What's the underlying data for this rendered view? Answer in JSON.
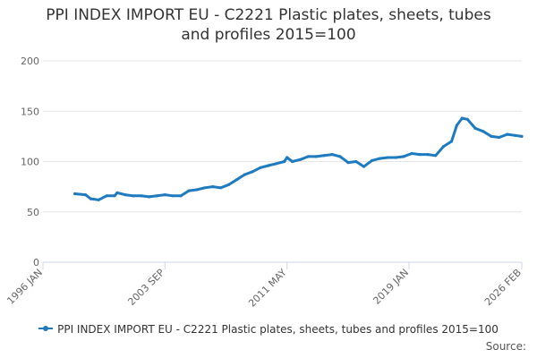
{
  "title_line1": "PPI INDEX IMPORT EU - C2221 Plastic plates, sheets, tubes",
  "title_line2": "and profiles 2015=100",
  "source_label": "Source:",
  "colors": {
    "series": "#1f7bbf",
    "grid": "#e6e6e6",
    "axis": "#ccd6eb",
    "text": "#666666"
  },
  "chart_data": {
    "type": "line",
    "title": "PPI INDEX IMPORT EU - C2221 Plastic plates, sheets, tubes and profiles 2015=100",
    "xlabel": "",
    "ylabel": "",
    "ylim": [
      0,
      200
    ],
    "yticks": [
      0,
      50,
      100,
      150,
      200
    ],
    "xlim": [
      "1996-01",
      "2026-02"
    ],
    "xtick_labels": [
      "1996 JAN",
      "2003 SEP",
      "2011 MAY",
      "2019 JAN",
      "2026 FEB"
    ],
    "xtick_dates": [
      "1996-01",
      "2003-09",
      "2011-05",
      "2019-01",
      "2026-02"
    ],
    "grid": true,
    "legend_position": "bottom",
    "series": [
      {
        "name": "PPI INDEX IMPORT EU - C2221 Plastic plates, sheets, tubes and profiles 2015=100",
        "x": [
          "1998-01",
          "1998-09",
          "1999-01",
          "1999-07",
          "2000-01",
          "2000-07",
          "2000-09",
          "2001-03",
          "2001-09",
          "2002-03",
          "2002-09",
          "2003-03",
          "2003-09",
          "2004-03",
          "2004-09",
          "2005-03",
          "2005-09",
          "2006-03",
          "2006-09",
          "2007-03",
          "2007-09",
          "2008-03",
          "2008-09",
          "2009-03",
          "2009-09",
          "2010-03",
          "2010-09",
          "2011-03",
          "2011-05",
          "2011-09",
          "2012-03",
          "2012-09",
          "2013-03",
          "2013-09",
          "2014-03",
          "2014-09",
          "2015-03",
          "2015-09",
          "2016-03",
          "2016-09",
          "2017-03",
          "2017-09",
          "2018-03",
          "2018-09",
          "2019-03",
          "2019-09",
          "2020-03",
          "2020-09",
          "2021-03",
          "2021-09",
          "2022-01",
          "2022-05",
          "2022-09",
          "2023-03",
          "2023-09",
          "2024-03",
          "2024-09",
          "2025-03",
          "2025-09",
          "2026-02"
        ],
        "values": [
          68,
          67,
          63,
          62,
          66,
          66,
          69,
          67,
          66,
          66,
          65,
          66,
          67,
          66,
          66,
          71,
          72,
          74,
          75,
          74,
          77,
          82,
          87,
          90,
          94,
          96,
          98,
          100,
          104,
          100,
          102,
          105,
          105,
          106,
          107,
          105,
          99,
          100,
          95,
          101,
          103,
          104,
          104,
          105,
          108,
          107,
          107,
          106,
          115,
          120,
          136,
          143,
          142,
          133,
          130,
          125,
          124,
          127,
          126,
          125
        ]
      }
    ]
  }
}
